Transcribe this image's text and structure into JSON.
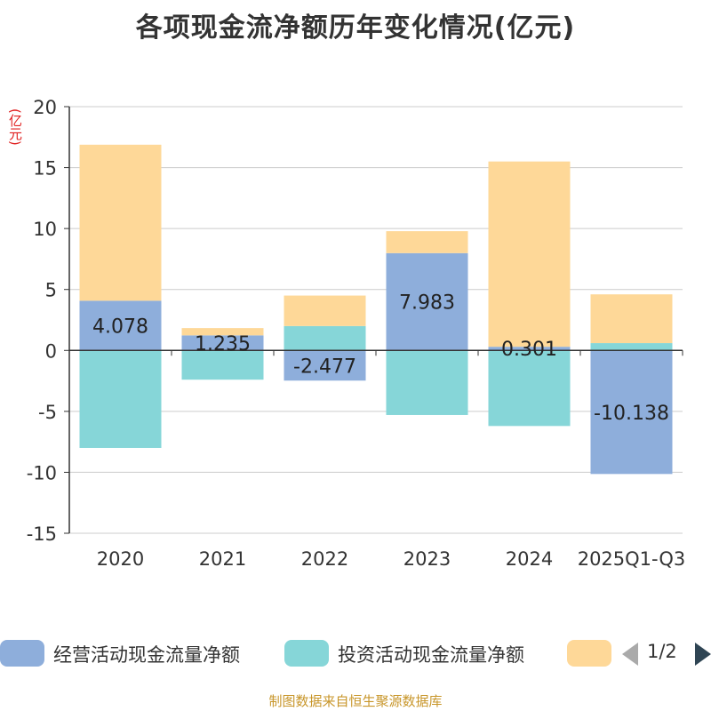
{
  "chart_data": {
    "type": "bar",
    "stacked": true,
    "title": "各项现金流净额历年变化情况(亿元)",
    "ylabel": "(亿元)",
    "ylim": [
      -15,
      20
    ],
    "yticks": [
      20,
      15,
      10,
      5,
      0,
      -5,
      -10,
      -15
    ],
    "categories": [
      "2020",
      "2021",
      "2022",
      "2023",
      "2024",
      "2025Q1-Q3"
    ],
    "series": [
      {
        "name": "经营活动现金流量净额",
        "color": "#8eaedb",
        "values": [
          4.078,
          1.235,
          -2.477,
          7.983,
          0.301,
          -10.138
        ],
        "labels": [
          "4.078",
          "1.235",
          "-2.477",
          "7.983",
          "0.301",
          "-10.138"
        ]
      },
      {
        "name": "投资活动现金流量净额",
        "color": "#86d6d8",
        "values": [
          -8.0,
          -2.4,
          2.0,
          -5.3,
          -6.2,
          0.6
        ]
      },
      {
        "name": "",
        "color": "#fed898",
        "values": [
          12.8,
          0.6,
          2.5,
          1.8,
          15.2,
          4.0
        ]
      }
    ]
  },
  "legend": {
    "items": [
      "经营活动现金流量净额",
      "投资活动现金流量净额"
    ],
    "page": "1/2"
  },
  "source": "制图数据来自恒生聚源数据库"
}
